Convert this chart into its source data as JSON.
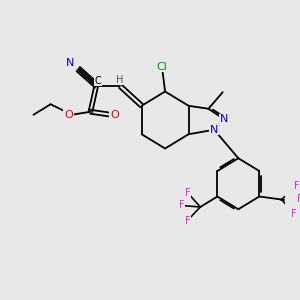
{
  "bg_color": "#e8e8e8",
  "bond_color": "#000000",
  "atom_colors": {
    "N": "#0000cc",
    "O": "#dd0000",
    "Cl": "#009900",
    "F": "#ee22cc",
    "C": "#000000",
    "H": "#555555"
  },
  "figsize": [
    3.0,
    3.0
  ],
  "dpi": 100
}
